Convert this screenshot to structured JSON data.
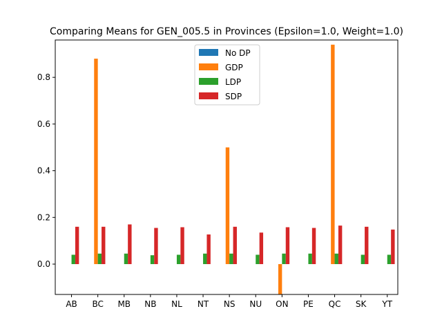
{
  "chart_data": {
    "type": "bar",
    "title": "Comparing Means for GEN_005.5 in Provinces (Epsilon=1.0, Weight=1.0)",
    "xlabel": "",
    "ylabel": "",
    "categories": [
      "AB",
      "BC",
      "MB",
      "NB",
      "NL",
      "NT",
      "NS",
      "NU",
      "ON",
      "PE",
      "QC",
      "SK",
      "YT"
    ],
    "ylim": [
      -0.13,
      0.96
    ],
    "yticks": [
      0.0,
      0.2,
      0.4,
      0.6,
      0.8
    ],
    "ytick_labels": [
      "0.0",
      "0.2",
      "0.4",
      "0.6",
      "0.8"
    ],
    "grid": false,
    "legend_position": "top-center",
    "series": [
      {
        "name": "No DP",
        "color": "#1f77b4",
        "values": [
          0,
          0,
          0,
          0,
          0,
          0,
          0,
          0,
          0,
          0,
          0,
          0,
          0
        ]
      },
      {
        "name": "GDP",
        "color": "#ff7f0e",
        "values": [
          0,
          0.88,
          0,
          0,
          0,
          0,
          0.5,
          0,
          -0.13,
          0,
          0.94,
          0,
          0
        ]
      },
      {
        "name": "LDP",
        "color": "#2ca02c",
        "values": [
          0.04,
          0.045,
          0.045,
          0.038,
          0.04,
          0.045,
          0.045,
          0.04,
          0.045,
          0.045,
          0.045,
          0.04,
          0.04
        ]
      },
      {
        "name": "SDP",
        "color": "#d62728",
        "values": [
          0.16,
          0.16,
          0.17,
          0.155,
          0.158,
          0.127,
          0.16,
          0.135,
          0.158,
          0.155,
          0.165,
          0.16,
          0.148
        ]
      }
    ]
  }
}
